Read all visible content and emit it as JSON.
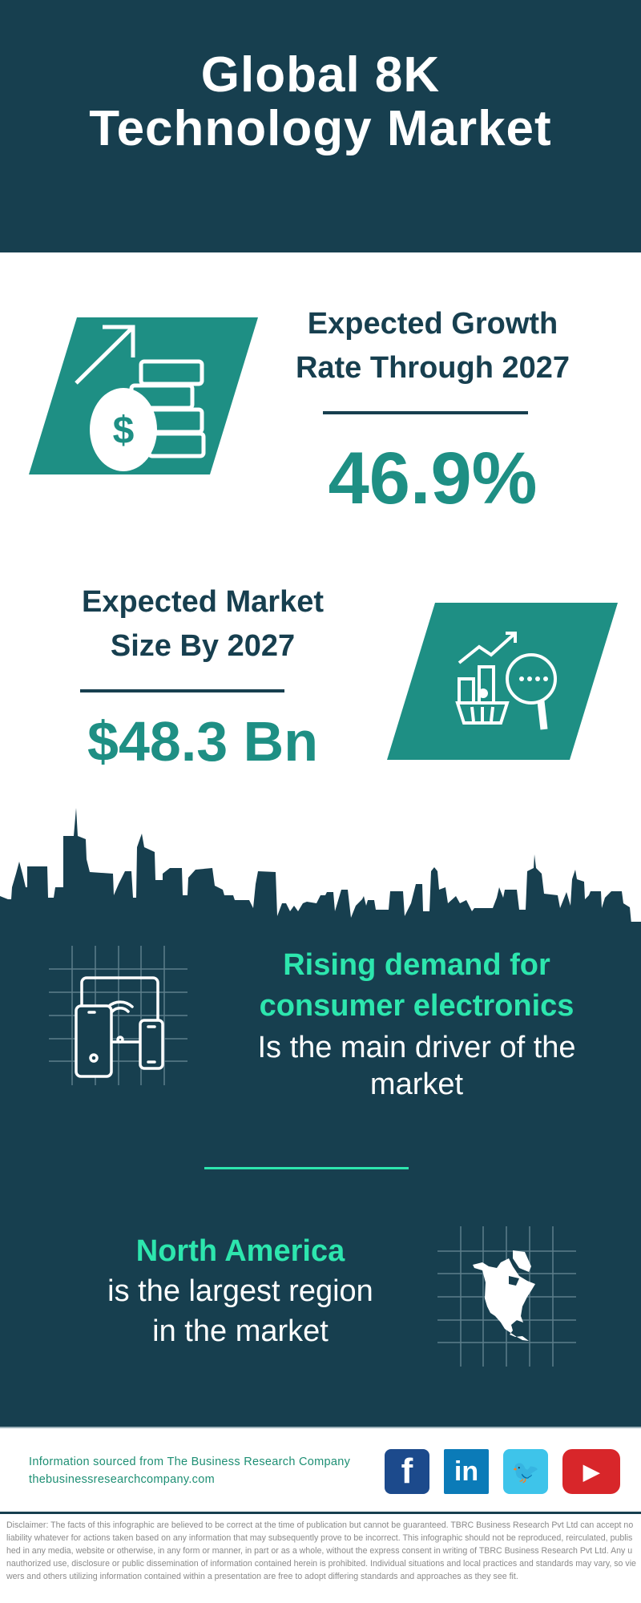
{
  "header": {
    "title_line1": "Global 8K",
    "title_line2": "Technology Market"
  },
  "growth": {
    "label_line1": "Expected Growth",
    "label_line2": "Rate Through 2027",
    "value": "46.9%",
    "icon": "money-growth-icon"
  },
  "market_size": {
    "label_line1": "Expected Market",
    "label_line2": "Size By 2027",
    "value": "$48.3 Bn",
    "icon": "market-analysis-icon"
  },
  "driver": {
    "highlight_line1": "Rising demand for",
    "highlight_line2": "consumer electronics",
    "text_line1": "Is the main driver of the",
    "text_line2": "market",
    "icon": "devices-icon"
  },
  "region": {
    "highlight": "North America",
    "text_line1": "is the largest region",
    "text_line2": "in the market",
    "icon": "north-america-map-icon"
  },
  "footer": {
    "source": "Information sourced from The Business Research Company",
    "website": "thebusinessresearchcompany.com",
    "social": [
      {
        "name": "facebook",
        "glyph": "f",
        "color": "#1c4a8c"
      },
      {
        "name": "linkedin",
        "glyph": "in",
        "color": "#0b7bb8"
      },
      {
        "name": "twitter",
        "glyph": "🐦",
        "color": "#3ec4ea"
      },
      {
        "name": "youtube",
        "glyph": "▶",
        "color": "#d8262a"
      }
    ]
  },
  "disclaimer": "Disclaimer: The facts of this infographic are believed to be correct at the time of publication but cannot be guaranteed. TBRC Business Research Pvt Ltd can accept no liability whatever for actions taken based on any information that may subsequently prove to be incorrect. This infographic should not be reproduced, reirculated, published in any media, website or otherwise, in any form or manner, in part or as a whole, without the express consent in writing of TBRC Business Research Pvt Ltd. Any unauthorized use, disclosure or public dissemination of information contained herein is prohibited. Individual situations and local practices and standards may vary, so viewers and others utilizing information contained within a presentation are free to adopt differing standards and approaches as they see fit.",
  "colors": {
    "dark": "#173f4f",
    "teal": "#1e8f84",
    "accent_green": "#2de6ae"
  }
}
